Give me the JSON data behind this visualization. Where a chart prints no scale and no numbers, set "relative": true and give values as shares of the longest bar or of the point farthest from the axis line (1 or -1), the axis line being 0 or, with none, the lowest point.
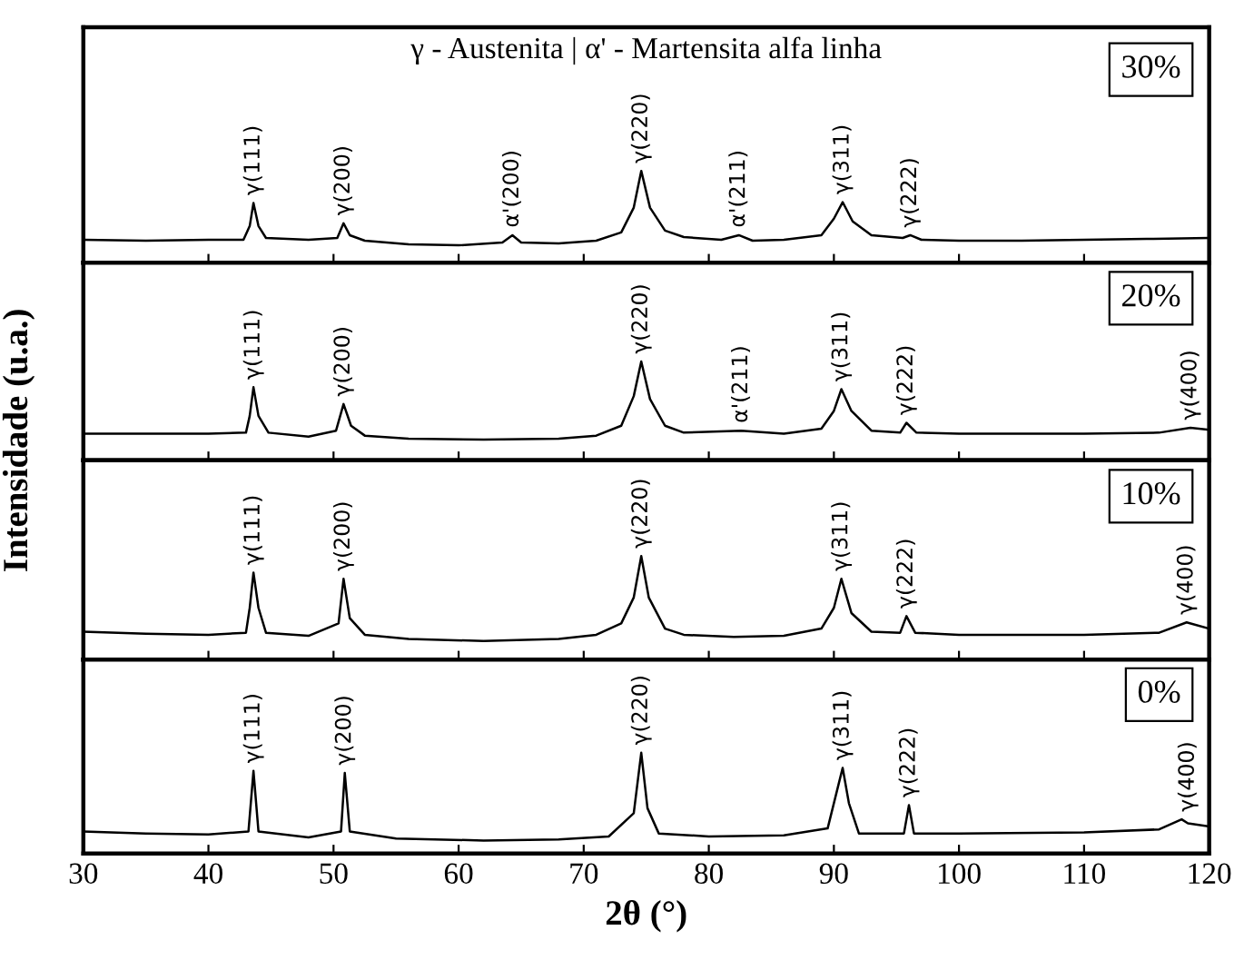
{
  "chart_data": [
    {
      "type": "line",
      "relative": true,
      "title": "γ - Austenita | α' - Martensita alfa linha",
      "ylabel": "Intensidade (u.a.)",
      "xlim": [
        30,
        120
      ],
      "xticks": [
        30,
        40,
        50,
        60,
        70,
        80,
        90,
        100,
        110,
        120
      ],
      "tick_labels": false,
      "series": [
        {
          "color": "#000000",
          "x": [
            30,
            35,
            40,
            42.8,
            43.3,
            43.6,
            44.0,
            44.6,
            48,
            50.3,
            50.8,
            51.3,
            52.5,
            56,
            60,
            63.5,
            64.3,
            65,
            68,
            71,
            73,
            74,
            74.6,
            75.3,
            76.5,
            78,
            81,
            82.4,
            83.5,
            86,
            89,
            90,
            90.7,
            91.5,
            93,
            95.5,
            96.1,
            97,
            100,
            105,
            110,
            115,
            120
          ],
          "values": [
            0.25,
            0.24,
            0.25,
            0.25,
            0.4,
            0.65,
            0.4,
            0.27,
            0.25,
            0.27,
            0.43,
            0.3,
            0.24,
            0.2,
            0.19,
            0.22,
            0.3,
            0.22,
            0.21,
            0.24,
            0.33,
            0.6,
            1.0,
            0.6,
            0.35,
            0.28,
            0.25,
            0.3,
            0.24,
            0.25,
            0.3,
            0.48,
            0.66,
            0.45,
            0.3,
            0.27,
            0.3,
            0.25,
            0.24,
            0.24,
            0.25,
            0.26,
            0.27
          ]
        }
      ],
      "annotations": [
        {
          "text": "γ(111)",
          "x": 43.6,
          "y": 0.65
        },
        {
          "text": "γ(200)",
          "x": 50.8,
          "y": 0.43
        },
        {
          "text": "α'(200)",
          "x": 64.3,
          "y": 0.3
        },
        {
          "text": "γ(220)",
          "x": 74.6,
          "y": 1.0
        },
        {
          "text": "α'(211)",
          "x": 82.4,
          "y": 0.3
        },
        {
          "text": "γ(311)",
          "x": 90.7,
          "y": 0.66
        },
        {
          "text": "γ(222)",
          "x": 96.1,
          "y": 0.3
        },
        "30%"
      ]
    },
    {
      "type": "line",
      "relative": true,
      "xlim": [
        30,
        120
      ],
      "xticks": [
        30,
        40,
        50,
        60,
        70,
        80,
        90,
        100,
        110,
        120
      ],
      "tick_labels": false,
      "series": [
        {
          "color": "#000000",
          "x": [
            30,
            35,
            40,
            43,
            43.3,
            43.6,
            44,
            44.8,
            48,
            50.2,
            50.8,
            51.4,
            52.5,
            56,
            62,
            68,
            71,
            73,
            74,
            74.6,
            75.3,
            76.5,
            78,
            82.6,
            86,
            89,
            90,
            90.6,
            91.4,
            93,
            95.3,
            95.8,
            96.6,
            100,
            110,
            116,
            118.5,
            120
          ],
          "values": [
            0.27,
            0.27,
            0.27,
            0.28,
            0.45,
            0.74,
            0.45,
            0.28,
            0.24,
            0.3,
            0.57,
            0.35,
            0.25,
            0.22,
            0.21,
            0.22,
            0.25,
            0.35,
            0.65,
            1.0,
            0.62,
            0.35,
            0.28,
            0.3,
            0.27,
            0.32,
            0.5,
            0.72,
            0.5,
            0.3,
            0.28,
            0.38,
            0.28,
            0.27,
            0.27,
            0.28,
            0.33,
            0.31
          ]
        }
      ],
      "annotations": [
        {
          "text": "γ(111)",
          "x": 43.6,
          "y": 0.74
        },
        {
          "text": "γ(200)",
          "x": 50.8,
          "y": 0.57
        },
        {
          "text": "γ(220)",
          "x": 74.6,
          "y": 1.0
        },
        {
          "text": "α'(211)",
          "x": 82.6,
          "y": 0.3
        },
        {
          "text": "γ(311)",
          "x": 90.6,
          "y": 0.72
        },
        {
          "text": "γ(222)",
          "x": 95.8,
          "y": 0.38
        },
        {
          "text": "γ(400)",
          "x": 118.5,
          "y": 0.33
        },
        "20%"
      ]
    },
    {
      "type": "line",
      "relative": true,
      "xlim": [
        30,
        120
      ],
      "xticks": [
        30,
        40,
        50,
        60,
        70,
        80,
        90,
        100,
        110,
        120
      ],
      "tick_labels": false,
      "series": [
        {
          "color": "#000000",
          "x": [
            30,
            35,
            40,
            43,
            43.3,
            43.6,
            44,
            44.6,
            48,
            50.4,
            50.8,
            51.3,
            52.5,
            56,
            62,
            68,
            71,
            73,
            74,
            74.6,
            75.2,
            76.5,
            78,
            82,
            86,
            89,
            90,
            90.6,
            91.4,
            93,
            95.3,
            95.8,
            96.5,
            100,
            110,
            116,
            118.2,
            120
          ],
          "values": [
            0.27,
            0.25,
            0.24,
            0.26,
            0.5,
            0.84,
            0.5,
            0.26,
            0.23,
            0.35,
            0.78,
            0.4,
            0.24,
            0.2,
            0.18,
            0.2,
            0.24,
            0.35,
            0.6,
            1.0,
            0.6,
            0.3,
            0.24,
            0.22,
            0.23,
            0.3,
            0.5,
            0.78,
            0.45,
            0.27,
            0.26,
            0.42,
            0.26,
            0.24,
            0.24,
            0.26,
            0.36,
            0.3
          ]
        }
      ],
      "annotations": [
        {
          "text": "γ(111)",
          "x": 43.6,
          "y": 0.84
        },
        {
          "text": "γ(200)",
          "x": 50.8,
          "y": 0.78
        },
        {
          "text": "γ(220)",
          "x": 74.6,
          "y": 1.0
        },
        {
          "text": "γ(311)",
          "x": 90.6,
          "y": 0.78
        },
        {
          "text": "γ(222)",
          "x": 95.8,
          "y": 0.42
        },
        {
          "text": "γ(400)",
          "x": 118.2,
          "y": 0.36
        },
        "10%"
      ]
    },
    {
      "type": "line",
      "relative": true,
      "xlabel": "2θ (°)",
      "xlim": [
        30,
        120
      ],
      "xticks": [
        30,
        40,
        50,
        60,
        70,
        80,
        90,
        100,
        110,
        120
      ],
      "tick_labels": "x",
      "series": [
        {
          "color": "#000000",
          "x": [
            30,
            35,
            40,
            43.2,
            43.6,
            44,
            48,
            50.6,
            50.9,
            51.3,
            55,
            62,
            68,
            72,
            74,
            74.6,
            75.1,
            76,
            80,
            86,
            89.5,
            90.4,
            90.7,
            91.2,
            92,
            95.6,
            96,
            96.4,
            100,
            110,
            116,
            117.8,
            118.3,
            120
          ],
          "values": [
            0.22,
            0.2,
            0.19,
            0.22,
            0.82,
            0.22,
            0.16,
            0.22,
            0.8,
            0.22,
            0.15,
            0.13,
            0.14,
            0.17,
            0.4,
            1.0,
            0.45,
            0.2,
            0.17,
            0.18,
            0.25,
            0.7,
            0.85,
            0.5,
            0.2,
            0.2,
            0.48,
            0.2,
            0.2,
            0.21,
            0.24,
            0.34,
            0.3,
            0.27
          ]
        }
      ],
      "annotations": [
        {
          "text": "γ(111)",
          "x": 43.6,
          "y": 0.82
        },
        {
          "text": "γ(200)",
          "x": 50.9,
          "y": 0.8
        },
        {
          "text": "γ(220)",
          "x": 74.6,
          "y": 1.0
        },
        {
          "text": "γ(311)",
          "x": 90.7,
          "y": 0.85
        },
        {
          "text": "γ(222)",
          "x": 96.0,
          "y": 0.48
        },
        {
          "text": "γ(400)",
          "x": 118.3,
          "y": 0.34
        },
        "0%"
      ]
    }
  ]
}
